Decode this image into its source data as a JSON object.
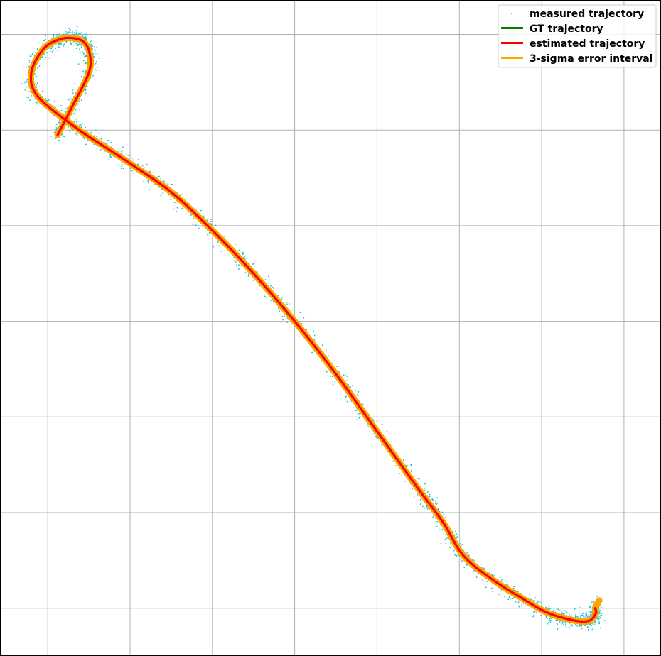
{
  "chart_data": {
    "type": "line",
    "title": "",
    "xlabel": "",
    "ylabel": "",
    "grid": true,
    "xlim": [
      -0.58,
      7.45
    ],
    "ylim": [
      -0.5,
      6.36
    ],
    "xticks": [
      0,
      1,
      2,
      3,
      4,
      5,
      6,
      7
    ],
    "yticks": [
      0,
      1,
      2,
      3,
      4,
      5,
      6
    ],
    "legend_position": "top-right",
    "series": [
      {
        "name": "measured trajectory",
        "kind": "scatter",
        "color": "#17BECF",
        "x": [
          0.12,
          0.3,
          0.5,
          0.51,
          0.44,
          0.32,
          0.15,
          -0.05,
          -0.2,
          -0.12,
          0.35,
          0.7,
          1.0,
          1.5,
          2.0,
          2.5,
          3.0,
          3.5,
          4.0,
          4.5,
          4.8,
          5.05,
          5.4,
          5.75,
          6.05,
          6.3,
          6.5,
          6.6,
          6.66,
          6.65
        ],
        "y": [
          4.95,
          5.25,
          5.6,
          5.8,
          5.92,
          5.96,
          5.95,
          5.85,
          5.6,
          5.35,
          5.02,
          4.82,
          4.65,
          4.35,
          3.95,
          3.5,
          3.0,
          2.45,
          1.85,
          1.25,
          0.9,
          0.55,
          0.3,
          0.11,
          -0.04,
          -0.11,
          -0.14,
          -0.12,
          -0.05,
          0.0
        ]
      },
      {
        "name": "GT trajectory",
        "kind": "line",
        "color": "#008000",
        "x": [
          0.12,
          0.3,
          0.5,
          0.51,
          0.44,
          0.32,
          0.15,
          -0.05,
          -0.2,
          -0.12,
          0.35,
          0.7,
          1.0,
          1.5,
          2.0,
          2.5,
          3.0,
          3.5,
          4.0,
          4.5,
          4.8,
          5.05,
          5.4,
          5.75,
          6.05,
          6.3,
          6.5,
          6.6,
          6.66,
          6.65
        ],
        "y": [
          4.95,
          5.25,
          5.6,
          5.8,
          5.92,
          5.96,
          5.95,
          5.85,
          5.6,
          5.35,
          5.02,
          4.82,
          4.65,
          4.35,
          3.95,
          3.5,
          3.0,
          2.45,
          1.85,
          1.25,
          0.9,
          0.55,
          0.3,
          0.11,
          -0.04,
          -0.11,
          -0.14,
          -0.12,
          -0.05,
          0.0
        ]
      },
      {
        "name": "estimated trajectory",
        "kind": "line",
        "color": "#FF0000",
        "x": [
          0.12,
          0.3,
          0.5,
          0.51,
          0.44,
          0.32,
          0.15,
          -0.05,
          -0.2,
          -0.12,
          0.35,
          0.7,
          1.0,
          1.5,
          2.0,
          2.5,
          3.0,
          3.5,
          4.0,
          4.5,
          4.8,
          5.05,
          5.4,
          5.75,
          6.05,
          6.3,
          6.5,
          6.6,
          6.66,
          6.65
        ],
        "y": [
          4.95,
          5.25,
          5.6,
          5.8,
          5.92,
          5.96,
          5.95,
          5.85,
          5.6,
          5.35,
          5.02,
          4.82,
          4.65,
          4.35,
          3.95,
          3.5,
          3.0,
          2.45,
          1.85,
          1.25,
          0.9,
          0.55,
          0.3,
          0.11,
          -0.04,
          -0.11,
          -0.14,
          -0.12,
          -0.05,
          0.0
        ]
      },
      {
        "name": "3-sigma error interval",
        "kind": "band",
        "color": "#FFA500",
        "x": [
          0.12,
          0.3,
          0.5,
          0.51,
          0.44,
          0.32,
          0.15,
          -0.05,
          -0.2,
          -0.12,
          0.35,
          0.7,
          1.0,
          1.5,
          2.0,
          2.5,
          3.0,
          3.5,
          4.0,
          4.5,
          4.8,
          5.05,
          5.4,
          5.75,
          6.05,
          6.3,
          6.5,
          6.6,
          6.66,
          6.65,
          6.7
        ],
        "y": [
          4.95,
          5.25,
          5.6,
          5.8,
          5.92,
          5.96,
          5.95,
          5.85,
          5.6,
          5.35,
          5.02,
          4.82,
          4.65,
          4.35,
          3.95,
          3.5,
          3.0,
          2.45,
          1.85,
          1.25,
          0.9,
          0.55,
          0.3,
          0.11,
          -0.04,
          -0.11,
          -0.14,
          -0.12,
          -0.05,
          0.0,
          0.08
        ]
      }
    ]
  }
}
